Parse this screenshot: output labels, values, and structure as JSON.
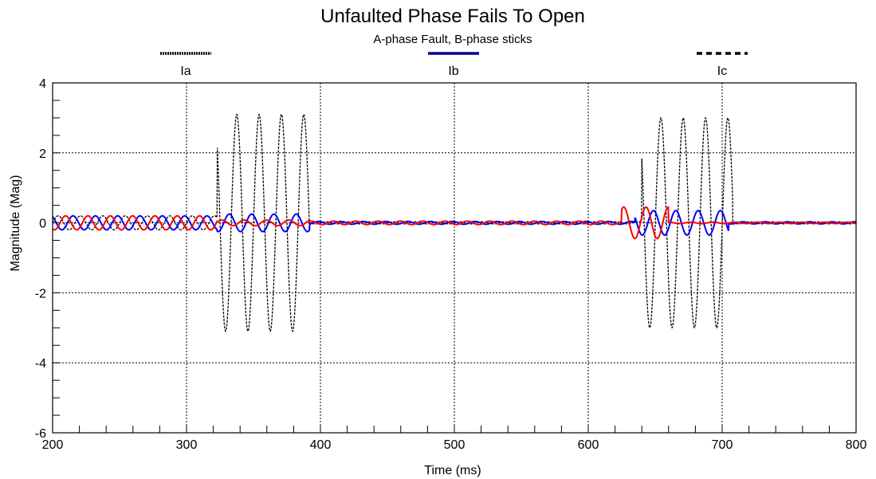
{
  "chart_data": {
    "type": "line",
    "title": "Unfaulted Phase Fails To Open",
    "subtitle": "A-phase Fault, B-phase sticks",
    "xlabel": "Time (ms)",
    "ylabel": "Magnitude (Mag)",
    "xlim": [
      200,
      800
    ],
    "ylim": [
      -6,
      4
    ],
    "x_ticks": [
      200,
      300,
      400,
      500,
      600,
      700,
      800
    ],
    "y_ticks": [
      -6,
      -4,
      -2,
      0,
      2,
      4
    ],
    "grid": true,
    "legend_position": "top",
    "series": [
      {
        "name": "Ia",
        "color": "#000000",
        "style": "dotted",
        "segments": [
          {
            "start": 200,
            "end": 323,
            "amplitude": 0.2,
            "period": 16.67,
            "phase": 0
          },
          {
            "start": 323,
            "end": 392,
            "amplitude": 3.1,
            "period": 16.67,
            "phase": 0
          },
          {
            "start": 392,
            "end": 640,
            "amplitude": 0.03,
            "period": 16.67,
            "phase": 0
          },
          {
            "start": 640,
            "end": 708,
            "amplitude": 3.0,
            "period": 16.67,
            "phase": 0
          },
          {
            "start": 708,
            "end": 800,
            "amplitude": 0.03,
            "period": 16.67,
            "phase": 0
          }
        ]
      },
      {
        "name": "Ib",
        "color": "#0000ff",
        "style": "solid",
        "segments": [
          {
            "start": 200,
            "end": 323,
            "amplitude": 0.2,
            "period": 16.67,
            "phase": 2.094
          },
          {
            "start": 323,
            "end": 392,
            "amplitude": 0.25,
            "period": 16.67,
            "phase": 2.094
          },
          {
            "start": 392,
            "end": 635,
            "amplitude": 0.04,
            "period": 16.67,
            "phase": 2.094
          },
          {
            "start": 635,
            "end": 705,
            "amplitude": 0.35,
            "period": 16.67,
            "phase": 2.094
          },
          {
            "start": 705,
            "end": 800,
            "amplitude": 0.03,
            "period": 16.67,
            "phase": 2.094
          }
        ]
      },
      {
        "name": "Ic",
        "color": "#ff0000",
        "style": "dashed",
        "segments": [
          {
            "start": 200,
            "end": 323,
            "amplitude": 0.2,
            "period": 16.67,
            "phase": 4.189
          },
          {
            "start": 323,
            "end": 392,
            "amplitude": 0.08,
            "period": 16.67,
            "phase": 4.189
          },
          {
            "start": 392,
            "end": 625,
            "amplitude": 0.05,
            "period": 16.67,
            "phase": 4.189
          },
          {
            "start": 625,
            "end": 660,
            "amplitude": 0.45,
            "period": 16.67,
            "phase": 4.189
          },
          {
            "start": 660,
            "end": 800,
            "amplitude": 0.02,
            "period": 16.67,
            "phase": 4.189
          }
        ]
      }
    ]
  }
}
